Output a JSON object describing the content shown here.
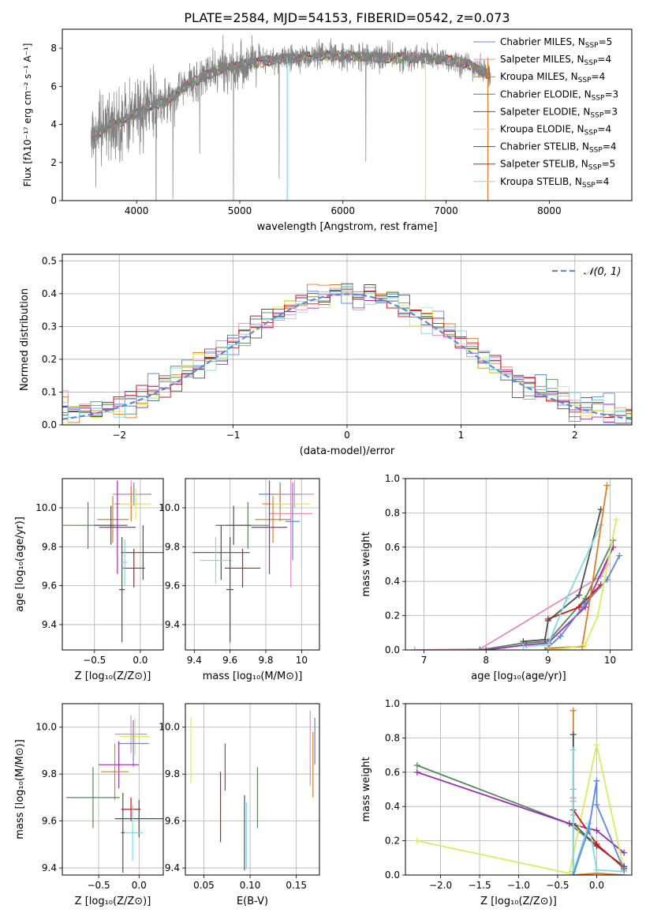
{
  "title": "PLATE=2584, MJD=54153, FIBERID=0542, z=0.073",
  "chart_data": [
    {
      "type": "line",
      "name": "spectrum",
      "xlabel": "wavelength [Angstrom, rest frame]",
      "ylabel": "Flux [fλ10⁻¹⁷ erg cm⁻² s⁻¹ A⁻¹]",
      "xlim": [
        3280,
        8800
      ],
      "ylim": [
        0,
        9
      ],
      "xticks": [
        4000,
        5000,
        6000,
        7000,
        8000
      ],
      "yticks": [
        0,
        2,
        4,
        6,
        8
      ],
      "data_color": "#808080",
      "continuum": {
        "x": [
          3550,
          3700,
          3900,
          4100,
          4300,
          4500,
          4800,
          5000,
          5200,
          5500,
          5800,
          6100,
          6400,
          6700,
          7000,
          7200,
          7430
        ],
        "y": [
          3.2,
          3.8,
          4.3,
          4.9,
          5.3,
          6.1,
          6.9,
          7.1,
          7.3,
          7.5,
          7.6,
          7.6,
          7.5,
          7.5,
          7.4,
          7.2,
          6.6
        ]
      },
      "legend_location": "upper right",
      "series": [
        {
          "name": "Chabrier MILES, N",
          "sub": "SSP",
          "tail": "=5",
          "color": "#5f87d8"
        },
        {
          "name": "Salpeter MILES, N",
          "sub": "SSP",
          "tail": "=4",
          "color": "#e58bc0"
        },
        {
          "name": "Kroupa MILES, N",
          "sub": "SSP",
          "tail": "=4",
          "color": "#e07b26"
        },
        {
          "name": "Chabrier ELODIE, N",
          "sub": "SSP",
          "tail": "=3",
          "color": "#508a5a"
        },
        {
          "name": "Salpeter ELODIE, N",
          "sub": "SSP",
          "tail": "=3",
          "color": "#9b2ab0"
        },
        {
          "name": "Kroupa ELODIE, N",
          "sub": "SSP",
          "tail": "=4",
          "color": "#d9ec5c"
        },
        {
          "name": "Chabrier STELIB, N",
          "sub": "SSP",
          "tail": "=4",
          "color": "#4f4f4f"
        },
        {
          "name": "Salpeter STELIB, N",
          "sub": "SSP",
          "tail": "=5",
          "color": "#c81a1a"
        },
        {
          "name": "Kroupa STELIB, N",
          "sub": "SSP",
          "tail": "=4",
          "color": "#7fdbe0"
        }
      ]
    },
    {
      "type": "histogram",
      "name": "residuals",
      "xlabel": "(data-model)/error",
      "ylabel": "Normed distribution",
      "xlim": [
        -2.5,
        2.5
      ],
      "ylim": [
        0,
        0.52
      ],
      "xticks": [
        -2,
        -1,
        0,
        1,
        2
      ],
      "yticks": [
        0.0,
        0.1,
        0.2,
        0.3,
        0.4,
        0.5
      ],
      "bin_width": 0.1,
      "legend_location": "upper right",
      "reference": {
        "label": "𝒩(0, 1)",
        "color": "#5f87d8",
        "mean": 0,
        "sigma": 1
      },
      "series_colors": [
        "#5f87d8",
        "#e58bc0",
        "#e07b26",
        "#508a5a",
        "#9b2ab0",
        "#d9ec5c",
        "#4f4f4f",
        "#c81a1a",
        "#7fdbe0"
      ]
    },
    {
      "type": "errorbar",
      "name": "age-vs-Z",
      "xlabel": "Z [log₁₀(Z/Z⊙)]",
      "ylabel": "age  [log₁₀(age/yr)]",
      "xlim": [
        -0.85,
        0.25
      ],
      "ylim": [
        9.27,
        10.15
      ],
      "xticks": [
        -0.5,
        0.0
      ],
      "xticklabels": [
        "−0.5",
        "0.0"
      ],
      "yticks": [
        9.4,
        9.6,
        9.8,
        10.0
      ],
      "points": [
        {
          "color": "#5f87d8",
          "x": -0.07,
          "xerr": 0.19,
          "y": 10.07,
          "yerr": 0.06
        },
        {
          "color": "#e58bc0",
          "x": -0.1,
          "xerr": 0.2,
          "y": 10.07,
          "yerr": 0.07
        },
        {
          "color": "#e07b26",
          "x": -0.1,
          "xerr": 0.18,
          "y": 10.02,
          "yerr": 0.09
        },
        {
          "color": "#d9ec5c",
          "x": -0.05,
          "xerr": 0.17,
          "y": 10.02,
          "yerr": 0.08
        },
        {
          "color": "#e07b26",
          "x": -0.3,
          "xerr": 0.17,
          "y": 9.94,
          "yerr": 0.12
        },
        {
          "color": "#508a5a",
          "x": -0.57,
          "xerr": 0.27,
          "y": 9.91,
          "yerr": 0.12
        },
        {
          "color": "#4f4f4f",
          "x": -0.32,
          "xerr": 0.18,
          "y": 9.91,
          "yerr": 0.1
        },
        {
          "color": "#9b2ab0",
          "x": -0.25,
          "xerr": 0.2,
          "y": 9.9,
          "yerr": 0.24
        },
        {
          "color": "#4f4f4f",
          "x": 0.03,
          "xerr": 0.24,
          "y": 9.77,
          "yerr": 0.14
        },
        {
          "color": "#c81a1a",
          "x": -0.07,
          "xerr": 0.12,
          "y": 9.69,
          "yerr": 0.1
        },
        {
          "color": "#4f4f4f",
          "x": -0.2,
          "xerr": 0.03,
          "y": 9.58,
          "yerr": 0.27
        },
        {
          "color": "#7fdbe0",
          "x": -0.17,
          "xerr": 0.03,
          "y": 9.72,
          "yerr": 0.12
        }
      ]
    },
    {
      "type": "errorbar",
      "name": "age-vs-mass",
      "xlabel": "mass [log₁₀(M/M⊙)]",
      "ylabel": "",
      "xlim": [
        9.35,
        10.1
      ],
      "ylim": [
        9.27,
        10.15
      ],
      "xticks": [
        9.4,
        9.6,
        9.8,
        10.0
      ],
      "yticks": [
        9.4,
        9.6,
        9.8,
        10.0
      ],
      "points": [
        {
          "color": "#5f87d8",
          "x": 9.88,
          "xerr": 0.12,
          "y": 10.07,
          "yerr": 0.06
        },
        {
          "color": "#e58bc0",
          "x": 9.96,
          "xerr": 0.11,
          "y": 10.07,
          "yerr": 0.07
        },
        {
          "color": "#e07b26",
          "x": 9.88,
          "xerr": 0.1,
          "y": 10.02,
          "yerr": 0.09
        },
        {
          "color": "#d9ec5c",
          "x": 9.94,
          "xerr": 0.11,
          "y": 10.02,
          "yerr": 0.08
        },
        {
          "color": "#e58bc0",
          "x": 9.94,
          "xerr": 0.12,
          "y": 9.97,
          "yerr": 0.38
        },
        {
          "color": "#e07b26",
          "x": 9.84,
          "xerr": 0.1,
          "y": 9.94,
          "yerr": 0.12
        },
        {
          "color": "#508a5a",
          "x": 9.7,
          "xerr": 0.12,
          "y": 9.91,
          "yerr": 0.12
        },
        {
          "color": "#4f4f4f",
          "x": 9.62,
          "xerr": 0.1,
          "y": 9.91,
          "yerr": 0.1
        },
        {
          "color": "#9b2ab0",
          "x": 9.82,
          "xerr": 0.1,
          "y": 9.9,
          "yerr": 0.24
        },
        {
          "color": "#5f87d8",
          "x": 9.95,
          "xerr": 0.04,
          "y": 9.93,
          "yerr": 0.2
        },
        {
          "color": "#4f4f4f",
          "x": 9.55,
          "xerr": 0.16,
          "y": 9.77,
          "yerr": 0.14
        },
        {
          "color": "#7fdbe0",
          "x": 9.52,
          "xerr": 0.09,
          "y": 9.73,
          "yerr": 0.12
        },
        {
          "color": "#c81a1a",
          "x": 9.67,
          "xerr": 0.1,
          "y": 9.69,
          "yerr": 0.1
        },
        {
          "color": "#4f4f4f",
          "x": 9.6,
          "xerr": 0.02,
          "y": 9.58,
          "yerr": 0.27
        }
      ]
    },
    {
      "type": "line",
      "name": "mass-weight-vs-age",
      "xlabel": "age  [log₁₀(age/yr)]",
      "ylabel": "mass weight",
      "xlim": [
        6.7,
        10.35
      ],
      "ylim": [
        0,
        1
      ],
      "xticks": [
        7,
        8,
        9,
        10
      ],
      "yticks": [
        0.0,
        0.2,
        0.4,
        0.6,
        0.8,
        1.0
      ],
      "series": [
        {
          "color": "#e58bc0",
          "x": [
            6.85,
            7.9,
            9.85,
            9.95
          ],
          "y": [
            0.0,
            0.005,
            0.43,
            0.5
          ]
        },
        {
          "color": "#508a5a",
          "x": [
            7.9,
            8.6,
            9.0,
            9.6,
            10.05
          ],
          "y": [
            0.0,
            0.04,
            0.05,
            0.3,
            0.64
          ]
        },
        {
          "color": "#9b2ab0",
          "x": [
            8.0,
            8.65,
            9.0,
            9.6,
            10.05
          ],
          "y": [
            0.0,
            0.03,
            0.04,
            0.25,
            0.6
          ]
        },
        {
          "color": "#c81a1a",
          "x": [
            9.0,
            9.5,
            9.85
          ],
          "y": [
            0.18,
            0.25,
            0.38
          ]
        },
        {
          "color": "#4f4f4f",
          "x": [
            8.6,
            8.95,
            9.0,
            9.5,
            9.85
          ],
          "y": [
            0.05,
            0.06,
            0.17,
            0.32,
            0.82
          ]
        },
        {
          "color": "#5f87d8",
          "x": [
            8.95,
            9.2,
            9.6,
            9.95,
            10.15
          ],
          "y": [
            0.0,
            0.08,
            0.27,
            0.41,
            0.55
          ]
        },
        {
          "color": "#7fdbe0",
          "x": [
            8.6,
            9.0,
            9.3,
            9.85
          ],
          "y": [
            0.02,
            0.03,
            0.3,
            0.73
          ]
        },
        {
          "color": "#e07b26",
          "x": [
            9.0,
            9.55,
            9.7,
            9.95
          ],
          "y": [
            0.01,
            0.02,
            0.35,
            0.96
          ]
        },
        {
          "color": "#d9ec5c",
          "x": [
            9.0,
            9.3,
            9.6,
            9.8,
            10.1
          ],
          "y": [
            0.0,
            0.01,
            0.03,
            0.2,
            0.76
          ]
        }
      ]
    },
    {
      "type": "errorbar",
      "name": "mass-vs-Z",
      "xlabel": "Z [log₁₀(Z/Z⊙)]",
      "ylabel": "mass [log₁₀(M/M⊙)]",
      "xlim": [
        -0.95,
        0.3
      ],
      "ylim": [
        9.37,
        10.1
      ],
      "xticks": [
        -0.5,
        0.0
      ],
      "xticklabels": [
        "−0.5",
        "0.0"
      ],
      "yticks": [
        9.4,
        9.6,
        9.8,
        10.0
      ],
      "points": [
        {
          "color": "#e58bc0",
          "x": -0.1,
          "xerr": 0.2,
          "y": 9.97,
          "yerr": 0.08
        },
        {
          "color": "#d9ec5c",
          "x": -0.05,
          "xerr": 0.18,
          "y": 9.96,
          "yerr": 0.08
        },
        {
          "color": "#5f87d8",
          "x": -0.07,
          "xerr": 0.19,
          "y": 9.93,
          "yerr": 0.1
        },
        {
          "color": "#9b2ab0",
          "x": -0.25,
          "xerr": 0.25,
          "y": 9.84,
          "yerr": 0.1
        },
        {
          "color": "#e07b26",
          "x": -0.3,
          "xerr": 0.17,
          "y": 9.81,
          "yerr": 0.12
        },
        {
          "color": "#508a5a",
          "x": -0.57,
          "xerr": 0.33,
          "y": 9.7,
          "yerr": 0.13
        },
        {
          "color": "#c81a1a",
          "x": -0.1,
          "xerr": 0.12,
          "y": 9.65,
          "yerr": 0.05
        },
        {
          "color": "#4f4f4f",
          "x": 0.0,
          "xerr": 0.3,
          "y": 9.61,
          "yerr": 0.08
        },
        {
          "color": "#7fdbe0",
          "x": -0.08,
          "xerr": 0.13,
          "y": 9.55,
          "yerr": 0.12
        },
        {
          "color": "#4f4f4f",
          "x": -0.2,
          "xerr": 0.02,
          "y": 9.55,
          "yerr": 0.17
        }
      ]
    },
    {
      "type": "errorbar",
      "name": "mass-vs-ebv",
      "xlabel": "E(B-V)",
      "ylabel": "",
      "xlim": [
        0.03,
        0.175
      ],
      "ylim": [
        9.37,
        10.1
      ],
      "xticks": [
        0.05,
        0.1,
        0.15
      ],
      "xticklabels": [
        "0.05",
        "0.10",
        "0.15"
      ],
      "yticks": [
        9.4,
        9.6,
        9.8,
        10.0
      ],
      "points": [
        {
          "color": "#d9ec5c",
          "x": 0.036,
          "y": 9.9,
          "yerr": 0.14
        },
        {
          "color": "#c81a1a",
          "x": 0.068,
          "y": 9.66,
          "yerr": 0.15
        },
        {
          "color": "#9b2ab0",
          "x": 0.073,
          "y": 9.83,
          "yerr": 0.1
        },
        {
          "color": "#4f4f4f",
          "x": 0.094,
          "y": 9.55,
          "yerr": 0.16
        },
        {
          "color": "#7fdbe0",
          "x": 0.096,
          "y": 9.54,
          "yerr": 0.14
        },
        {
          "color": "#508a5a",
          "x": 0.108,
          "y": 9.7,
          "yerr": 0.13
        },
        {
          "color": "#e58bc0",
          "x": 0.165,
          "y": 9.91,
          "yerr": 0.16
        },
        {
          "color": "#e07b26",
          "x": 0.168,
          "y": 9.84,
          "yerr": 0.14
        },
        {
          "color": "#5f87d8",
          "x": 0.17,
          "y": 9.94,
          "yerr": 0.1
        }
      ]
    },
    {
      "type": "line",
      "name": "mass-weight-vs-Z",
      "xlabel": "Z [log₁₀(Z/Z⊙)]",
      "ylabel": "mass weight",
      "xlim": [
        -2.45,
        0.45
      ],
      "ylim": [
        0,
        1
      ],
      "xticks": [
        -2.0,
        -1.5,
        -1.0,
        -0.5,
        0.0
      ],
      "xticklabels": [
        "−2.0",
        "−1.5",
        "−1.0",
        "−0.5",
        "0.0"
      ],
      "yticks": [
        0.0,
        0.2,
        0.4,
        0.6,
        0.8,
        1.0
      ],
      "series": [
        {
          "color": "#508a5a",
          "x": [
            -2.3,
            -0.35,
            0.0,
            0.35
          ],
          "y": [
            0.64,
            0.3,
            0.17,
            0.05
          ]
        },
        {
          "color": "#9b2ab0",
          "x": [
            -2.3,
            -0.35,
            0.0,
            0.35
          ],
          "y": [
            0.6,
            0.3,
            0.26,
            0.13
          ]
        },
        {
          "color": "#d9ec5c",
          "x": [
            -2.3,
            -0.35,
            0.0,
            0.35
          ],
          "y": [
            0.2,
            0.01,
            0.76,
            0.03
          ]
        },
        {
          "color": "#e07b26",
          "x": [
            -0.3,
            -0.3,
            0.0,
            0.35
          ],
          "y": [
            0.96,
            0.0,
            0.01,
            0.0
          ]
        },
        {
          "color": "#e58bc0",
          "x": [
            -0.3,
            -0.3,
            -0.3,
            -0.3,
            -0.3
          ],
          "y": [
            0.5,
            0.45,
            0.43,
            0.35,
            0.0
          ]
        },
        {
          "color": "#4f4f4f",
          "x": [
            -0.3,
            -0.3,
            0.0,
            0.35
          ],
          "y": [
            0.82,
            0.3,
            0.17,
            0.05
          ]
        },
        {
          "color": "#c81a1a",
          "x": [
            -0.3,
            0.0,
            0.35
          ],
          "y": [
            0.38,
            0.18,
            0.04
          ]
        },
        {
          "color": "#7fdbe0",
          "x": [
            -0.3,
            -0.3,
            -0.1,
            0.0,
            0.35
          ],
          "y": [
            0.73,
            0.02,
            0.3,
            0.03,
            0.02
          ]
        },
        {
          "color": "#5f87d8",
          "x": [
            -0.3,
            -0.1,
            0.0,
            0.0,
            0.35
          ],
          "y": [
            0.0,
            0.27,
            0.55,
            0.41,
            0.03
          ]
        }
      ]
    }
  ]
}
